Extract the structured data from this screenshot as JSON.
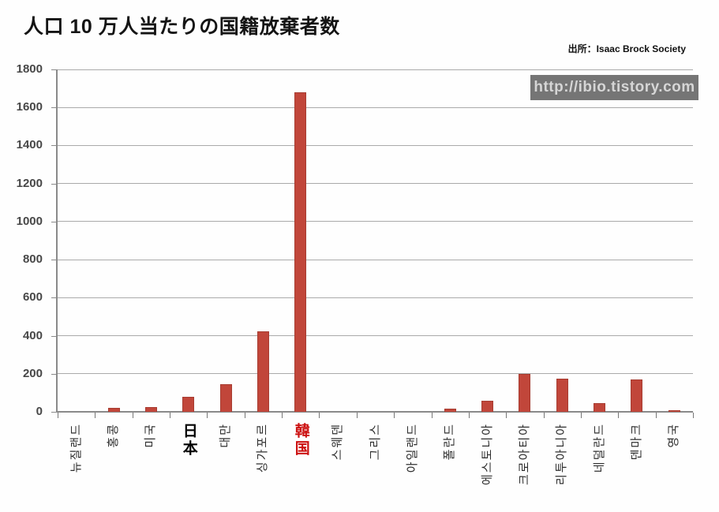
{
  "title": "人口 10 万人当たりの国籍放棄者数",
  "source": "出所：Isaac Brock Society",
  "watermark": "http://ibio.tistory.com",
  "colors": {
    "bar_fill": "#c1463a",
    "bar_edge": "#a73c31",
    "gridline": "#aaaaaa",
    "axis": "#8a8a8a",
    "title_text": "#141414",
    "ylabel_text": "#474747",
    "xlabel_text": "#2e2e2e",
    "japan_label": "#000000",
    "korea_label": "#cc1111",
    "watermark_bg": "#757575",
    "watermark_text": "#d6d6d6"
  },
  "chart_data": {
    "type": "bar",
    "title": "人口 10 万人当たりの国籍放棄者数",
    "source": "出所：Isaac Brock Society",
    "watermark": "http://ibio.tistory.com",
    "xlabel": "",
    "ylabel": "",
    "ylim": [
      0,
      1800
    ],
    "ytick_step": 200,
    "yticks": [
      0,
      200,
      400,
      600,
      800,
      1000,
      1200,
      1400,
      1600,
      1800
    ],
    "grid": true,
    "legend": "none",
    "bar_color": "#c1463a",
    "categories": [
      {
        "id": "new-zealand",
        "label": "뉴질랜드",
        "emphasis": "none"
      },
      {
        "id": "hong-kong",
        "label": "홍콩",
        "emphasis": "none"
      },
      {
        "id": "usa",
        "label": "미국",
        "emphasis": "none"
      },
      {
        "id": "japan",
        "label": "日本",
        "emphasis": "bold-black-upright"
      },
      {
        "id": "taiwan",
        "label": "대만",
        "emphasis": "none"
      },
      {
        "id": "singapore",
        "label": "싱가포르",
        "emphasis": "none"
      },
      {
        "id": "south-korea",
        "label": "韓国",
        "emphasis": "bold-red-upright"
      },
      {
        "id": "sweden",
        "label": "스웨덴",
        "emphasis": "none"
      },
      {
        "id": "greece",
        "label": "그리스",
        "emphasis": "none"
      },
      {
        "id": "ireland",
        "label": "아일랜드",
        "emphasis": "none"
      },
      {
        "id": "poland",
        "label": "폴란드",
        "emphasis": "none"
      },
      {
        "id": "estonia",
        "label": "에스토니아",
        "emphasis": "none"
      },
      {
        "id": "croatia",
        "label": "크로아티아",
        "emphasis": "none"
      },
      {
        "id": "lithuania",
        "label": "리투아니아",
        "emphasis": "none"
      },
      {
        "id": "netherlands",
        "label": "네덜란드",
        "emphasis": "none"
      },
      {
        "id": "denmark",
        "label": "덴마크",
        "emphasis": "none"
      },
      {
        "id": "uk",
        "label": "영국",
        "emphasis": "none"
      }
    ],
    "values": [
      0,
      20,
      25,
      80,
      145,
      425,
      1680,
      0,
      0,
      0,
      15,
      60,
      200,
      175,
      45,
      170,
      10
    ]
  }
}
